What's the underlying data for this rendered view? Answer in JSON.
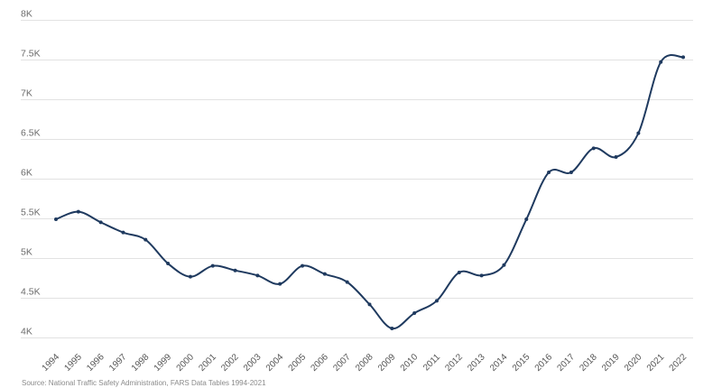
{
  "chart_data": {
    "type": "line",
    "title": "",
    "xlabel": "",
    "ylabel": "",
    "x": [
      "1994",
      "1995",
      "1996",
      "1997",
      "1998",
      "1999",
      "2000",
      "2001",
      "2002",
      "2003",
      "2004",
      "2005",
      "2006",
      "2007",
      "2008",
      "2009",
      "2010",
      "2011",
      "2012",
      "2013",
      "2014",
      "2015",
      "2016",
      "2017",
      "2018",
      "2019",
      "2020",
      "2021",
      "2022"
    ],
    "series": [
      {
        "values": [
          5494,
          5589,
          5456,
          5328,
          5237,
          4937,
          4771,
          4907,
          4850,
          4786,
          4680,
          4907,
          4805,
          4703,
          4422,
          4119,
          4312,
          4468,
          4824,
          4786,
          4918,
          5494,
          6085,
          6085,
          6388,
          6278,
          6578,
          7475,
          7536
        ],
        "color": "#1f3a5f"
      }
    ],
    "ylim": [
      4000,
      8000
    ],
    "yticks": [
      4000,
      4500,
      5000,
      5500,
      6000,
      6500,
      7000,
      7500,
      8000
    ],
    "ytick_labels": [
      "4K",
      "4.5K",
      "5K",
      "5.5K",
      "6K",
      "6.5K",
      "7K",
      "7.5K",
      "8K"
    ],
    "grid": "horizontal",
    "smooth": true,
    "markers": true,
    "source": "Source: National Traffic Safety Administration, FARS Data Tables 1994-2021"
  }
}
